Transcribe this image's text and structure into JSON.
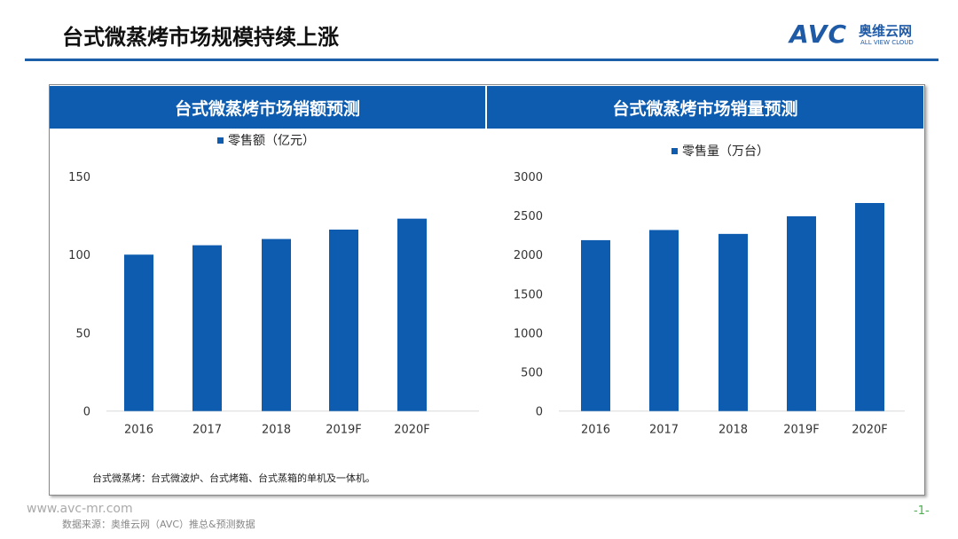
{
  "title": "台式微蒸烤市场规模持续上涨",
  "logo": {
    "text": "AVC",
    "cn": "奥维云网",
    "en": "ALL VIEW CLOUD"
  },
  "note": "台式微蒸烤：台式微波炉、台式烤箱、台式蒸箱的单机及一体机。",
  "footer": {
    "url": "www.avc-mr.com",
    "source": "数据来源：奥维云网（AVC）推总&预测数据",
    "page": "-1-"
  },
  "bar_color": "#0d5cb0",
  "chart_data": [
    {
      "type": "bar",
      "title": "台式微蒸烤市场销额预测",
      "categories": [
        "2016",
        "2017",
        "2018",
        "2019F",
        "2020F"
      ],
      "series": [
        {
          "name": "零售额（亿元）",
          "values": [
            100,
            106,
            110,
            116,
            123
          ]
        }
      ],
      "ylim": [
        0,
        150
      ],
      "yticks": [
        0,
        50,
        100,
        150
      ],
      "grid": false,
      "legend": "top"
    },
    {
      "type": "bar",
      "title": "台式微蒸烤市场销量预测",
      "categories": [
        "2016",
        "2017",
        "2018",
        "2019F",
        "2020F"
      ],
      "series": [
        {
          "name": "零售量（万台）",
          "values": [
            2185,
            2315,
            2265,
            2490,
            2660
          ]
        }
      ],
      "ylim": [
        0,
        3000
      ],
      "yticks": [
        0,
        500,
        1000,
        1500,
        2000,
        2500,
        3000
      ],
      "grid": false,
      "legend": "top"
    }
  ]
}
